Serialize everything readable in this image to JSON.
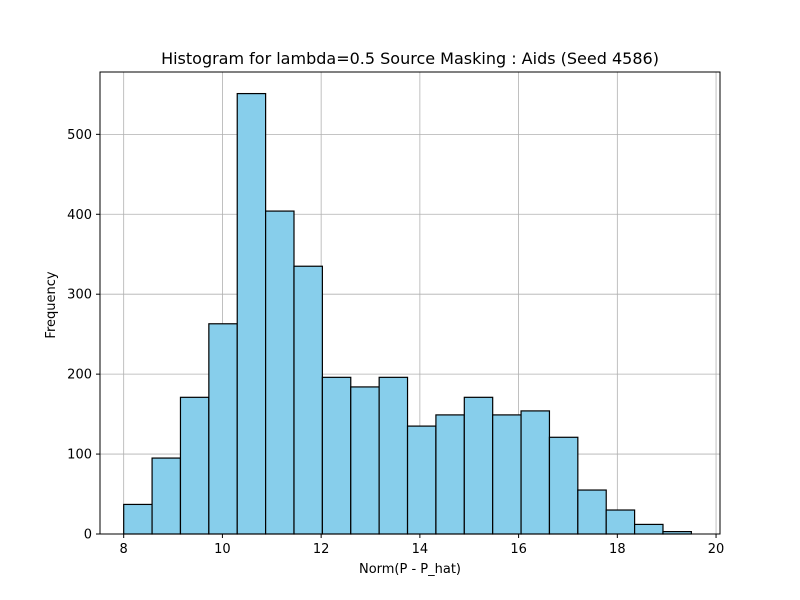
{
  "chart_data": {
    "type": "bar",
    "title": "Histogram for lambda=0.5 Source Masking : Aids (Seed 4586)",
    "xlabel": "Norm(P - P_hat)",
    "ylabel": "Frequency",
    "xlim": [
      7.52,
      20.08
    ],
    "ylim": [
      0,
      578
    ],
    "xticks": [
      8,
      10,
      12,
      14,
      16,
      18,
      20
    ],
    "yticks": [
      0,
      100,
      200,
      300,
      400,
      500
    ],
    "grid": true,
    "bar_color": "#87ceeb",
    "edge_color": "#000000",
    "bins": [
      {
        "x0": 8.0,
        "x1": 8.575,
        "value": 37
      },
      {
        "x0": 8.575,
        "x1": 9.15,
        "value": 95
      },
      {
        "x0": 9.15,
        "x1": 9.725,
        "value": 171
      },
      {
        "x0": 9.725,
        "x1": 10.3,
        "value": 263
      },
      {
        "x0": 10.3,
        "x1": 10.875,
        "value": 551
      },
      {
        "x0": 10.875,
        "x1": 11.45,
        "value": 404
      },
      {
        "x0": 11.45,
        "x1": 12.025,
        "value": 335
      },
      {
        "x0": 12.025,
        "x1": 12.6,
        "value": 196
      },
      {
        "x0": 12.6,
        "x1": 13.175,
        "value": 184
      },
      {
        "x0": 13.175,
        "x1": 13.75,
        "value": 196
      },
      {
        "x0": 13.75,
        "x1": 14.325,
        "value": 135
      },
      {
        "x0": 14.325,
        "x1": 14.9,
        "value": 149
      },
      {
        "x0": 14.9,
        "x1": 15.475,
        "value": 171
      },
      {
        "x0": 15.475,
        "x1": 16.05,
        "value": 149
      },
      {
        "x0": 16.05,
        "x1": 16.625,
        "value": 154
      },
      {
        "x0": 16.625,
        "x1": 17.2,
        "value": 121
      },
      {
        "x0": 17.2,
        "x1": 17.775,
        "value": 55
      },
      {
        "x0": 17.775,
        "x1": 18.35,
        "value": 30
      },
      {
        "x0": 18.35,
        "x1": 18.925,
        "value": 12
      },
      {
        "x0": 18.925,
        "x1": 19.5,
        "value": 3
      }
    ]
  }
}
